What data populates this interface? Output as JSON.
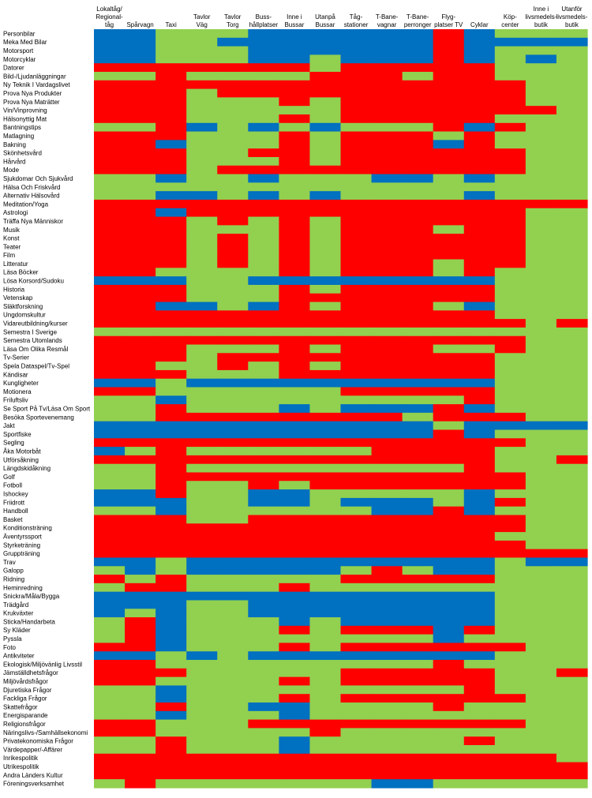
{
  "chart_data": {
    "type": "heatmap",
    "colors": {
      "R": "#ff0000",
      "G": "#92d050",
      "B": "#0070c0"
    },
    "columns": [
      [
        "Lokaltåg/",
        "Regional-",
        "tåg"
      ],
      [
        "Spårvagn"
      ],
      [
        "Taxi"
      ],
      [
        "Tavlor",
        "Väg"
      ],
      [
        "Tavlor",
        "Torg"
      ],
      [
        "Buss-",
        "hållplatser"
      ],
      [
        "Inne i",
        "Bussar"
      ],
      [
        "Utanpå",
        "Bussar"
      ],
      [
        "Tåg-",
        "stationer"
      ],
      [
        "T-Bane-",
        "vagnar"
      ],
      [
        "T-Bane-",
        "perronger"
      ],
      [
        "Flyg-",
        "platser TV"
      ],
      [
        "Cyklar"
      ],
      [
        "Köp-",
        "center"
      ],
      [
        "Inne i",
        "livsmedels-",
        "butik"
      ],
      [
        "Utanför",
        "livsmedels-",
        "butik"
      ]
    ],
    "rows": [
      {
        "label": "Personbilar",
        "cells": "BBGGGBBBBBBRBGGG"
      },
      {
        "label": "Meka Med Bilar",
        "cells": "BBGGBBBBBBBRBBBB"
      },
      {
        "label": "Motorsport",
        "cells": "BBGGGBBBBBBRBGGG"
      },
      {
        "label": "Motorcyklar",
        "cells": "BBGGGBBGBBBRBGBG"
      },
      {
        "label": "Datorer",
        "cells": "RRRRRRRGRRRRRGGG"
      },
      {
        "label": "Bild-/Ljudanläggningar",
        "cells": "GGRGGGGRRRGRRGGG"
      },
      {
        "label": "Ny Teknik I  Vardagslivet",
        "cells": "RRRRRRRRRRRRRRGG"
      },
      {
        "label": "Prova Nya Produkter",
        "cells": "RRRGRRRRRRRRRRGG"
      },
      {
        "label": "Prova Nya Maträtter",
        "cells": "RRRGGGRGRRRRRRGG"
      },
      {
        "label": "Vin/Vinprovning",
        "cells": "RRRGGGGGRRRRRRRG"
      },
      {
        "label": "Hälsonyttig Mat",
        "cells": "RRRGGGRGRRRRRGGG"
      },
      {
        "label": "Bantningstips",
        "cells": "GGRBGBGBGGGRBRGG"
      },
      {
        "label": "Matlagning",
        "cells": "RRRGGGRGRRRGRGGG"
      },
      {
        "label": "Bakning",
        "cells": "RRBGGGRGRRRBRGGG"
      },
      {
        "label": "Skönhetsvård",
        "cells": "RRRGGRRGRRRRRRGG"
      },
      {
        "label": "Hårvård",
        "cells": "RRRGGGRGRRRRRRGG"
      },
      {
        "label": "Mode",
        "cells": "RRRGRRRRRRRRRRGG"
      },
      {
        "label": "Sjukdomar Och Sjukvård",
        "cells": "GGBGGBGGGBBGBGGG"
      },
      {
        "label": "Hälsa Och Friskvård",
        "cells": "GGGGGGGGGGGGGGGG"
      },
      {
        "label": "Alternativ Hälsovård",
        "cells": "GGBBGBGBGGGGBGGG"
      },
      {
        "label": "Meditation/Yoga",
        "cells": "RRRRRRRRRRRRRRRR"
      },
      {
        "label": "Astrologi",
        "cells": "RRBRRRRRRRRRRRGG"
      },
      {
        "label": "Träffa Nya Människor",
        "cells": "RRRGRGRGRRRRRRGG"
      },
      {
        "label": "Musik",
        "cells": "RRRGGGRGRRRGRRGG"
      },
      {
        "label": "Konst",
        "cells": "RRRGRGRGRRRRRRGG"
      },
      {
        "label": "Teater",
        "cells": "RRRGRGRGRRRRRRGG"
      },
      {
        "label": "Film",
        "cells": "RRRGRGRGRRRRRRGG"
      },
      {
        "label": "Litteratur",
        "cells": "RRRGRGRGRRRGRRGG"
      },
      {
        "label": "Läsa Böcker",
        "cells": "RRGGGGRGRRRGRGGG"
      },
      {
        "label": "Lösa Korsord/Sudoku",
        "cells": "BBBGGBBBBBBBBGGG"
      },
      {
        "label": "Historia",
        "cells": "RRRGGGRGRRRRRGGG"
      },
      {
        "label": "Vetenskap",
        "cells": "RRRGGGRRRRRRRGGG"
      },
      {
        "label": "Släktforskning",
        "cells": "RRBBGBRGRRRGBGGG"
      },
      {
        "label": "Ungdomskultur",
        "cells": "RRRRRRRRRRRRRGGG"
      },
      {
        "label": "Vidareutbildning/kurser",
        "cells": "RRRRRRRRRRRRRRGR"
      },
      {
        "label": "Semestra I Sverige",
        "cells": "GGGGGGGGGGGGGGGG"
      },
      {
        "label": "Semestra Utomlands",
        "cells": "RRRRRRRRRRRRRRGG"
      },
      {
        "label": "Läsa Om Olika Resmål",
        "cells": "RRRGGGRGRRRGGRGG"
      },
      {
        "label": "Tv-Serier",
        "cells": "RRRGRRRRRRRRRGGG"
      },
      {
        "label": "Spela Dataspel/Tv-Spel",
        "cells": "RRGGRGRGRRRRRGGG"
      },
      {
        "label": "Kändisar",
        "cells": "RRRGGGRRRRRRRGGG"
      },
      {
        "label": "Kungligheter",
        "cells": "BBGBBBBBBBBBBGGG"
      },
      {
        "label": "Motionera",
        "cells": "RRGGGGGGRRRRRGGG"
      },
      {
        "label": "Friluftsliv",
        "cells": "GGBGGGGGGGGGRGGG"
      },
      {
        "label": "Se Sport På Tv/Läsa Om Sport",
        "cells": "GGRGGGBGBBBRBGGG"
      },
      {
        "label": "Besöka Sportevenemang",
        "cells": "GGRRRRRRRRGRRRGG"
      },
      {
        "label": "Jakt",
        "cells": "BBBBBBBBBBBGBBBB"
      },
      {
        "label": "Sportfiske",
        "cells": "BBBBBBBBBBBRBGGG"
      },
      {
        "label": "Segling",
        "cells": "RRRRRRRRRRRRRRGG"
      },
      {
        "label": "Åka Motorbåt",
        "cells": "BGRGGGGGGRRRRGGG"
      },
      {
        "label": "Utförsåkning",
        "cells": "RRRRRRRRRRRRRGGR"
      },
      {
        "label": "Längdskidåkning",
        "cells": "GGRGGGGGGGGGRGGG"
      },
      {
        "label": "Golf",
        "cells": "GGRRRRRRRRRRRRGG"
      },
      {
        "label": "Fotboll",
        "cells": "GGRGGRGRRRRRRRGG"
      },
      {
        "label": "Ishockey",
        "cells": "BBRGGBBGGGGGBGGG"
      },
      {
        "label": "Friidrott",
        "cells": "BBBGGBBGBBBGBRGG"
      },
      {
        "label": "Handboll",
        "cells": "GGBGGGGGGBBRBGGG"
      },
      {
        "label": "Basket",
        "cells": "RRRGGRRRRRRRRRGG"
      },
      {
        "label": "Konditionsträning",
        "cells": "RRRRRRRRRRRRRRGG"
      },
      {
        "label": "Äventyrssport",
        "cells": "RRRRRRRRRRRRRGGG"
      },
      {
        "label": "Styrketräning",
        "cells": "RRRRRRRRRRRRRRGG"
      },
      {
        "label": "Gruppträning",
        "cells": "RRRRRRRRRRRRRRRR"
      },
      {
        "label": "Trav",
        "cells": "BBGBBBBBBBBBBGBB"
      },
      {
        "label": "Galopp",
        "cells": "GBGBBBBBGRGBBGGG"
      },
      {
        "label": "Ridning",
        "cells": "RGRGGGGGRRRRRGGG"
      },
      {
        "label": "Heminredning",
        "cells": "GRRGGGRGGGGGGGGG"
      },
      {
        "label": "Snickra/Måla/Bygga",
        "cells": "BBBBBBBBBBBBBGGG"
      },
      {
        "label": "Trädgård",
        "cells": "BBBGGBBBBBBBBGGG"
      },
      {
        "label": "Krukväxter",
        "cells": "BGBGGBBBBBBBBGGG"
      },
      {
        "label": "Sticka/Handarbeta",
        "cells": "GRBGGGBGBBBBBGGG"
      },
      {
        "label": "Sy Kläder",
        "cells": "GRBGGGRGRRRBRGGG"
      },
      {
        "label": "Pyssla",
        "cells": "GRBGGGGGGGGBGGGG"
      },
      {
        "label": "Foto",
        "cells": "RRBGGGRGRRRRRRGG"
      },
      {
        "label": "Antikviteter",
        "cells": "BBGBGBBBBBBBBGGG"
      },
      {
        "label": "Ekologisk/Miljövänlig Livsstil",
        "cells": "RRGGGGGGGGGRGGGG"
      },
      {
        "label": "Jämställdhetsfrågor",
        "cells": "RRRGGGGGRRRRRGGR"
      },
      {
        "label": "Miljövårdsfrågor",
        "cells": "RRGGGGRGRRRRRGGG"
      },
      {
        "label": "Djuretiska Frågor",
        "cells": "GGBGGGGGGGGGRGGG"
      },
      {
        "label": "Fackliga Frågor",
        "cells": "GGBGGGRGRRRRRRGG"
      },
      {
        "label": "Skattefrågor",
        "cells": "GGRGGBBGGGGRGGGG"
      },
      {
        "label": "Energisparande",
        "cells": "GGBGGGBGGGGGGGGG"
      },
      {
        "label": "Religionsfrågor",
        "cells": "RRGGGRRRRRRRRRGG"
      },
      {
        "label": "Näringslivs-/Samhällsekonomi",
        "cells": "RRGGGGGRGGGGGGGG"
      },
      {
        "label": "Privatekonomiska Frågor",
        "cells": "GGRGGGBGGGGGRGGG"
      },
      {
        "label": "Värdepapper/-Affärer",
        "cells": "GGRGGGBGGGGGGGGG"
      },
      {
        "label": "Inrikespolitik",
        "cells": "RRRRRRRRRRRRRRRG"
      },
      {
        "label": "Utrikespolitik",
        "cells": "RRRRRRRRRRRRRRRR"
      },
      {
        "label": "Andra Länders Kultur",
        "cells": "RRRRRRRRRRRRRRRR"
      },
      {
        "label": "Föreningsverksamhet",
        "cells": "GRGGGGGGGBBGGGGG"
      }
    ]
  }
}
